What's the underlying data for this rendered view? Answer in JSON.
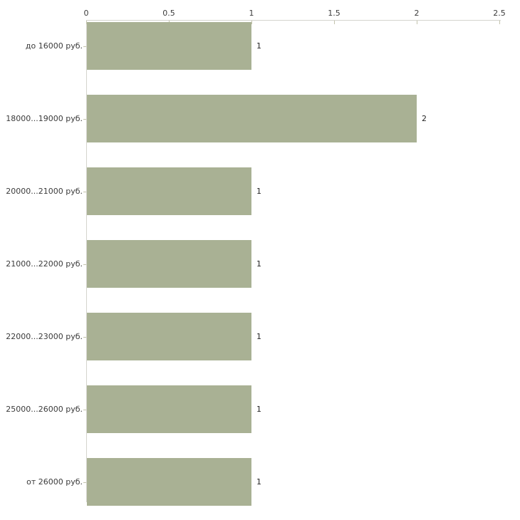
{
  "chart_data": {
    "type": "bar",
    "orientation": "horizontal",
    "title": "",
    "xlabel": "",
    "ylabel": "",
    "grid": false,
    "legend": null,
    "categories": [
      "до 16000 руб.",
      "18000...19000 руб.",
      "20000...21000 руб.",
      "21000...22000 руб.",
      "22000...23000 руб.",
      "25000...26000 руб.",
      "от 26000 руб."
    ],
    "values": [
      1,
      2,
      1,
      1,
      1,
      1,
      1
    ],
    "value_labels": [
      "1",
      "2",
      "1",
      "1",
      "1",
      "1",
      "1"
    ],
    "x_ticks": [
      0,
      0.5,
      1,
      1.5,
      2,
      2.5
    ],
    "x_tick_labels": [
      "0",
      "0.5",
      "1",
      "1.5",
      "2",
      "2.5"
    ],
    "xlim": [
      0,
      2.5
    ],
    "axis_position": "top",
    "colors": {
      "bar": "#a9b194",
      "axis_line": "#d4d4ce",
      "tick": "#c3c3ad",
      "label_text": "#3b3b3b",
      "value_text": "#242424",
      "background": "#ffffff"
    }
  }
}
